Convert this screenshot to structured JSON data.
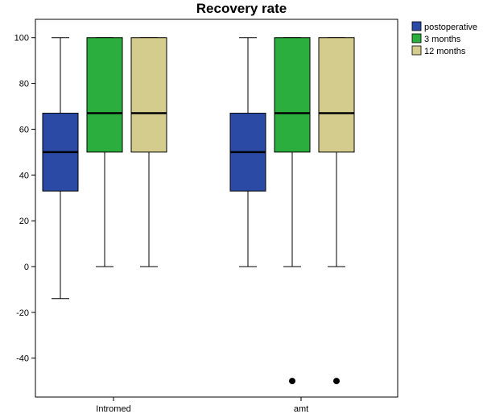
{
  "chart_data": {
    "type": "boxplot",
    "title": "Recovery rate",
    "xlabel": "",
    "ylabel": "",
    "categories": [
      "Intromed",
      "amt"
    ],
    "ylim": [
      -57,
      108
    ],
    "yticks": [
      -40,
      -20,
      0,
      20,
      40,
      60,
      80,
      100
    ],
    "grid": false,
    "legend_position": "top-right",
    "series": [
      {
        "name": "postoperative",
        "color": "#2B4AA6",
        "boxes": [
          {
            "whisker_low": -14,
            "q1": 33,
            "median": 50,
            "q3": 67,
            "whisker_high": 100,
            "outliers": []
          },
          {
            "whisker_low": 0,
            "q1": 33,
            "median": 50,
            "q3": 67,
            "whisker_high": 100,
            "outliers": []
          }
        ]
      },
      {
        "name": "3 months",
        "color": "#2BAE3E",
        "boxes": [
          {
            "whisker_low": 0,
            "q1": 50,
            "median": 67,
            "q3": 100,
            "whisker_high": 100,
            "outliers": []
          },
          {
            "whisker_low": 0,
            "q1": 50,
            "median": 67,
            "q3": 100,
            "whisker_high": 100,
            "outliers": [
              -50
            ]
          }
        ]
      },
      {
        "name": "12 months",
        "color": "#D4CC8C",
        "boxes": [
          {
            "whisker_low": 0,
            "q1": 50,
            "median": 67,
            "q3": 100,
            "whisker_high": 100,
            "outliers": []
          },
          {
            "whisker_low": 0,
            "q1": 50,
            "median": 67,
            "q3": 100,
            "whisker_high": 100,
            "outliers": [
              -50
            ]
          }
        ]
      }
    ]
  }
}
